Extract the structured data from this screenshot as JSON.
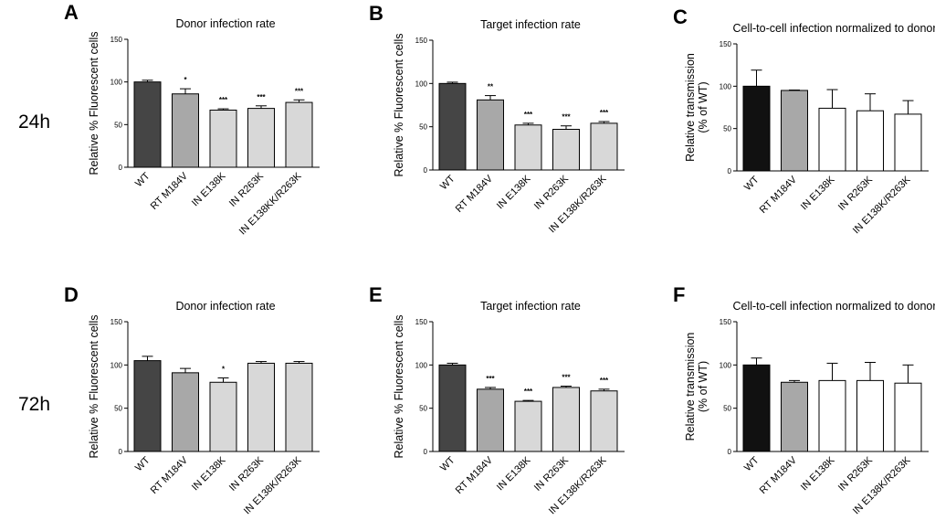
{
  "time_labels": [
    "24h",
    "72h"
  ],
  "colors": {
    "dark": "#454545",
    "mid": "#a8a8a8",
    "light": "#d8d8d8",
    "black": "#111111",
    "white": "#ffffff"
  },
  "chart_data": [
    {
      "letter": "A",
      "type": "bar",
      "title": "Donor infection rate",
      "ylabel": "Relative % Fluorescent cells",
      "ylim": [
        0,
        150
      ],
      "yticks": [
        "0",
        "50",
        "100",
        "150"
      ],
      "categories": [
        "WT",
        "RT M184V",
        "IN E138K",
        "IN R263K",
        "IN E138KK/R263K"
      ],
      "values": [
        100,
        86,
        67,
        69,
        76
      ],
      "errors": [
        2,
        6,
        1.5,
        3,
        3
      ],
      "significance": [
        "",
        "*",
        "***",
        "***",
        "***"
      ],
      "fills": [
        "dark",
        "mid",
        "light",
        "light",
        "light"
      ]
    },
    {
      "letter": "B",
      "type": "bar",
      "title": "Target infection rate",
      "ylabel": "Relative % Fluorescent cells",
      "ylim": [
        0,
        150
      ],
      "yticks": [
        "0",
        "50",
        "100",
        "150"
      ],
      "categories": [
        "WT",
        "RT M184V",
        "IN E138K",
        "IN R263K",
        "IN E138K/R263K"
      ],
      "values": [
        100,
        81,
        52,
        47,
        54
      ],
      "errors": [
        1.5,
        5,
        2,
        4,
        2
      ],
      "significance": [
        "",
        "**",
        "***",
        "***",
        "***"
      ],
      "fills": [
        "dark",
        "mid",
        "light",
        "light",
        "light"
      ]
    },
    {
      "letter": "C",
      "type": "bar",
      "title": "Cell-to-cell infection normalized to donor",
      "ylabel": "Relative transmission\n(% of WT)",
      "ylim": [
        0,
        150
      ],
      "yticks": [
        "0",
        "50",
        "100",
        "150"
      ],
      "categories": [
        "WT",
        "RT M184V",
        "IN E138K",
        "IN R263K",
        "IN E138K/R263K"
      ],
      "values": [
        100,
        95,
        74,
        71,
        67
      ],
      "errors": [
        19,
        0.5,
        22,
        20,
        16
      ],
      "significance": [
        "",
        "",
        "",
        "",
        ""
      ],
      "fills": [
        "black",
        "mid",
        "white",
        "white",
        "white"
      ]
    },
    {
      "letter": "D",
      "type": "bar",
      "title": "Donor infection rate",
      "ylabel": "Relative % Fluorescent cells",
      "ylim": [
        0,
        150
      ],
      "yticks": [
        "0",
        "50",
        "100",
        "150"
      ],
      "categories": [
        "WT",
        "RT M184V",
        "IN E138K",
        "IN R263K",
        "IN E138K/R263K"
      ],
      "values": [
        105,
        91,
        80,
        102,
        102
      ],
      "errors": [
        5,
        5,
        5,
        2,
        2
      ],
      "significance": [
        "",
        "",
        "*",
        "",
        ""
      ],
      "fills": [
        "dark",
        "mid",
        "light",
        "light",
        "light"
      ]
    },
    {
      "letter": "E",
      "type": "bar",
      "title": "Target infection rate",
      "ylabel": "Relative % Fluorescent cells",
      "ylim": [
        0,
        150
      ],
      "yticks": [
        "0",
        "50",
        "100",
        "150"
      ],
      "categories": [
        "WT",
        "RT M184V",
        "IN E138K",
        "IN R263K",
        "IN E138K/R263K"
      ],
      "values": [
        100,
        72,
        58,
        74,
        70
      ],
      "errors": [
        2,
        2,
        1,
        1.5,
        2
      ],
      "significance": [
        "",
        "***",
        "***",
        "***",
        "***"
      ],
      "fills": [
        "dark",
        "mid",
        "light",
        "light",
        "light"
      ]
    },
    {
      "letter": "F",
      "type": "bar",
      "title": "Cell-to-cell infection normalized to donor",
      "ylabel": "Relative transmission\n(% of WT)",
      "ylim": [
        0,
        150
      ],
      "yticks": [
        "0",
        "50",
        "100",
        "150"
      ],
      "categories": [
        "WT",
        "RT M184V",
        "IN E138K",
        "IN R263K",
        "IN E138K/R263K"
      ],
      "values": [
        100,
        80,
        82,
        82,
        79
      ],
      "errors": [
        8,
        2,
        20,
        21,
        21
      ],
      "significance": [
        "",
        "",
        "",
        "",
        ""
      ],
      "fills": [
        "black",
        "mid",
        "white",
        "white",
        "white"
      ]
    }
  ]
}
